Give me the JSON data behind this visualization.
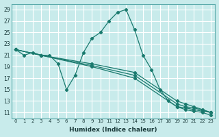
{
  "xlabel": "Humidex (Indice chaleur)",
  "bg_color": "#c8ebeb",
  "grid_color": "#ffffff",
  "line_color": "#1a7a6e",
  "xlim": [
    -0.5,
    23.5
  ],
  "ylim": [
    10,
    30
  ],
  "yticks": [
    11,
    13,
    15,
    17,
    19,
    21,
    23,
    25,
    27,
    29
  ],
  "xticks": [
    0,
    1,
    2,
    3,
    4,
    5,
    6,
    7,
    8,
    9,
    10,
    11,
    12,
    13,
    14,
    15,
    16,
    17,
    18,
    19,
    20,
    21,
    22,
    23
  ],
  "series": [
    {
      "x": [
        0,
        1,
        2,
        3,
        4,
        5,
        6,
        7,
        8,
        9,
        10,
        11,
        12,
        13,
        14,
        15,
        16,
        17,
        18,
        19,
        20,
        21,
        22,
        23
      ],
      "y": [
        22,
        21,
        21.5,
        21,
        21,
        19.5,
        15,
        17.5,
        21.5,
        24,
        25,
        27,
        28.5,
        29,
        25.5,
        21,
        18.5,
        15,
        13,
        12,
        11.5,
        11.2,
        11,
        10.5
      ]
    },
    {
      "x": [
        0,
        3,
        9,
        14,
        19,
        20,
        21,
        22,
        23
      ],
      "y": [
        22,
        21,
        19.5,
        18,
        13,
        12.5,
        12,
        11.5,
        11
      ]
    },
    {
      "x": [
        0,
        3,
        9,
        14,
        19,
        20,
        21,
        22,
        23
      ],
      "y": [
        22,
        21,
        19.2,
        17.5,
        12.5,
        12,
        11.8,
        11.4,
        11
      ]
    },
    {
      "x": [
        0,
        3,
        9,
        14,
        19,
        20,
        21,
        22,
        23
      ],
      "y": [
        22,
        21,
        19,
        17,
        12,
        11.8,
        11.5,
        11.2,
        11
      ]
    }
  ]
}
